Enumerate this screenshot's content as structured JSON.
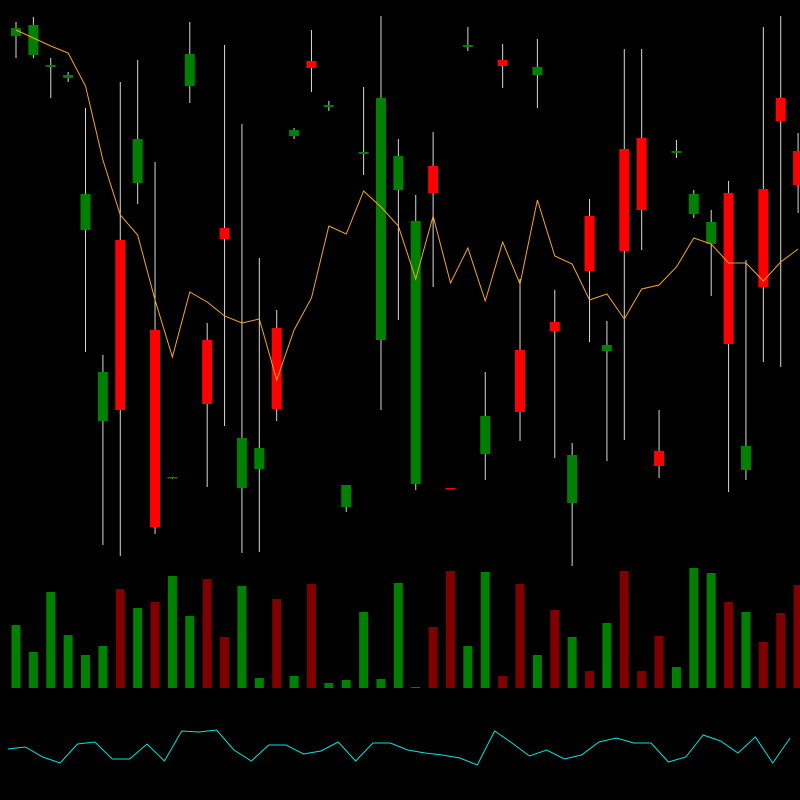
{
  "chart_data": [
    {
      "type": "candlestick",
      "open": [
        564,
        545,
        533,
        522,
        370,
        179,
        360,
        417,
        270,
        122,
        514,
        260,
        372,
        112,
        131,
        272,
        464,
        539,
        493,
        93,
        446,
        260,
        410,
        116,
        434,
        112,
        553,
        146,
        540,
        250,
        525,
        278,
        97,
        384,
        249,
        451,
        462,
        149,
        447,
        386,
        356,
        407,
        130,
        411,
        502,
        449
      ],
      "high": [
        578,
        583,
        542,
        528,
        492,
        245,
        518,
        540,
        438,
        123,
        578,
        277,
        555,
        476,
        342,
        290,
        472,
        570,
        499,
        115,
        513,
        584,
        461,
        405,
        468,
        112,
        573,
        228,
        556,
        321,
        561,
        310,
        157,
        401,
        279,
        551,
        551,
        190,
        460,
        410,
        390,
        419,
        340,
        573,
        584,
        467
      ],
      "low": [
        542,
        542,
        502,
        518,
        248,
        55,
        44,
        396,
        66,
        121,
        497,
        113,
        174,
        47,
        48,
        179,
        461,
        508,
        489,
        88,
        425,
        190,
        280,
        110,
        313,
        111,
        549,
        120,
        512,
        159,
        492,
        142,
        34,
        258,
        139,
        160,
        350,
        122,
        442,
        382,
        304,
        108,
        120,
        238,
        233,
        387
      ],
      "close": [
        572,
        575,
        535,
        525,
        406,
        228,
        190,
        461,
        73,
        123,
        546,
        196,
        361,
        162,
        152,
        191,
        470,
        532,
        495,
        115,
        448,
        502,
        444,
        379,
        407,
        111,
        555,
        184,
        534,
        188,
        533,
        269,
        145,
        329,
        255,
        349,
        390,
        134,
        449,
        406,
        378,
        256,
        154,
        313,
        479,
        415
      ],
      "up_color": "#008000",
      "down_color": "#ff0000",
      "wick_color": "#d8d8d8",
      "ylim": [
        0,
        600
      ],
      "series": [
        {
          "color": "#f5a623",
          "values": [
            570,
            562,
            554,
            547,
            514,
            440,
            385,
            365,
            300,
            243,
            308,
            298,
            284,
            277,
            281,
            220,
            270,
            302,
            374,
            366,
            409,
            393,
            374,
            321,
            384,
            317,
            352,
            299,
            358,
            316,
            400,
            344,
            336,
            300,
            306,
            281,
            311,
            315,
            333,
            362,
            356,
            337,
            337,
            319,
            338,
            351
          ]
        }
      ]
    },
    {
      "type": "bar",
      "values": [
        63,
        36,
        96,
        53,
        33,
        42,
        99,
        80,
        86,
        112,
        72,
        109,
        51,
        102,
        10,
        89,
        12,
        104,
        5,
        8,
        76,
        9,
        105,
        1,
        61,
        117,
        42,
        116,
        12,
        104,
        33,
        78,
        51,
        17,
        65,
        117,
        17,
        52,
        21,
        120,
        115,
        86,
        76,
        46,
        75,
        103
      ],
      "up_color": "#008000",
      "down_color": "#800000",
      "ylim": [
        0,
        120
      ]
    },
    {
      "type": "line",
      "values": [
        51,
        53,
        43,
        37,
        56,
        58,
        41,
        41,
        56,
        39,
        69,
        68,
        70,
        50,
        39,
        55,
        55,
        46,
        49,
        58,
        39,
        57,
        57,
        50,
        47,
        45,
        42,
        35,
        69,
        57,
        44,
        50,
        41,
        45,
        58,
        62,
        57,
        57,
        38,
        43,
        65,
        59,
        47,
        63,
        37,
        62
      ],
      "color": "#00e5e5",
      "ylim": [
        0,
        100
      ]
    }
  ]
}
